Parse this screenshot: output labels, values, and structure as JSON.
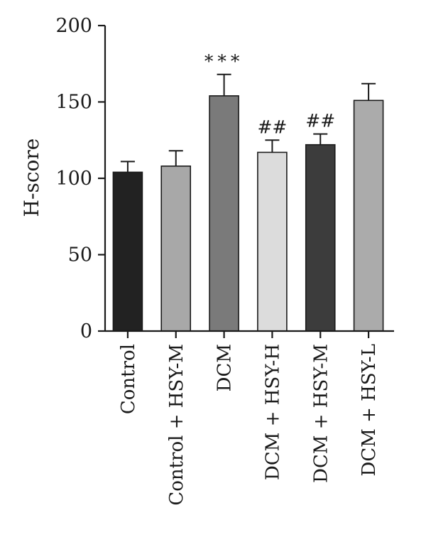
{
  "chart_data": {
    "type": "bar",
    "title": "",
    "xlabel": "",
    "ylabel": "H-score",
    "ylim": [
      0,
      200
    ],
    "yticks": [
      0,
      50,
      100,
      150,
      200
    ],
    "grid": false,
    "categories": [
      "Control",
      "Control + HSY-M",
      "DCM",
      "DCM + HSY-H",
      "DCM + HSY-M",
      "DCM + HSY-L"
    ],
    "values": [
      104,
      108,
      154,
      117,
      122,
      151
    ],
    "errors": [
      7,
      10,
      14,
      8,
      7,
      11
    ],
    "annotations": [
      "",
      "",
      "***",
      "##",
      "##",
      ""
    ],
    "colors": [
      "#222222",
      "#a8a8a8",
      "#7a7a7a",
      "#dcdcdc",
      "#3c3c3c",
      "#ababab"
    ]
  }
}
